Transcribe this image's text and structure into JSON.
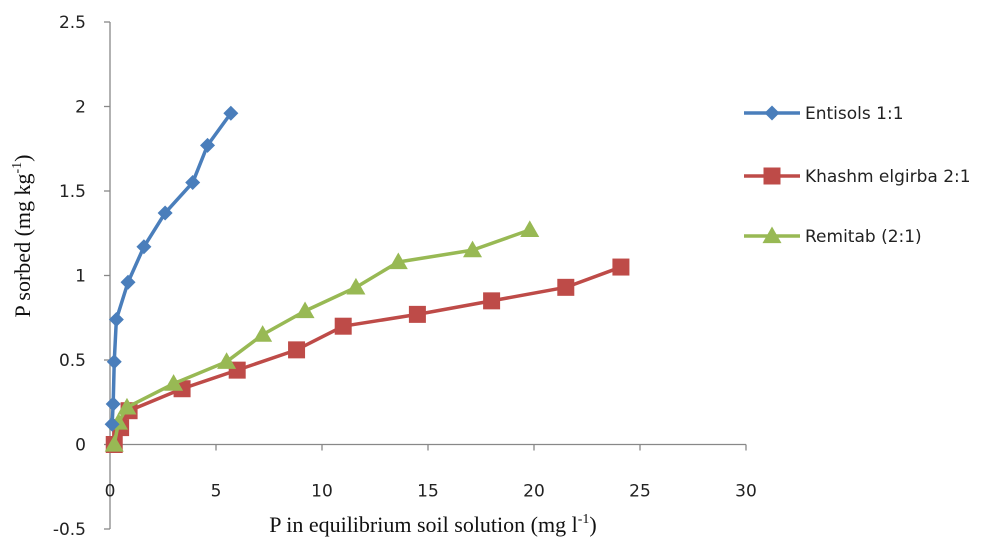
{
  "chart_data": {
    "type": "line",
    "xlabel": "P in equilibrium soil solution (mg l",
    "xlabel_sup": "-1",
    "xlabel_end": ")",
    "ylabel": "P sorbed (mg kg",
    "ylabel_sup": "-1",
    "ylabel_end": ")",
    "xlim": [
      0,
      30
    ],
    "ylim": [
      -0.5,
      2.5
    ],
    "x_ticks": [
      "0",
      "5",
      "10",
      "15",
      "20",
      "25",
      "30"
    ],
    "y_ticks": [
      "-0.5",
      "0",
      "0.5",
      "1",
      "1.5",
      "2",
      "2.5"
    ],
    "grid": false,
    "legend_position": "right",
    "series": [
      {
        "name": "Entisols 1:1",
        "marker": "diamond",
        "color": "#4a7ebb",
        "x": [
          0.1,
          0.15,
          0.2,
          0.3,
          0.85,
          1.6,
          2.6,
          3.9,
          4.6,
          5.7
        ],
        "y": [
          0.12,
          0.24,
          0.49,
          0.74,
          0.96,
          1.17,
          1.37,
          1.55,
          1.77,
          1.96
        ]
      },
      {
        "name": "Khashm elgirba 2:1",
        "marker": "square",
        "color": "#be4b48",
        "x": [
          0.2,
          0.5,
          0.9,
          3.4,
          6.0,
          8.8,
          11.0,
          14.5,
          18.0,
          21.5,
          24.1
        ],
        "y": [
          0.0,
          0.1,
          0.2,
          0.33,
          0.44,
          0.56,
          0.7,
          0.77,
          0.85,
          0.93,
          1.05
        ]
      },
      {
        "name": "Remitab (2:1)",
        "marker": "triangle",
        "color": "#98b954",
        "x": [
          0.2,
          0.4,
          0.8,
          3.0,
          5.5,
          7.2,
          9.2,
          11.6,
          13.6,
          17.1,
          19.8
        ],
        "y": [
          0.0,
          0.13,
          0.22,
          0.36,
          0.49,
          0.65,
          0.79,
          0.93,
          1.08,
          1.15,
          1.27
        ]
      }
    ]
  }
}
